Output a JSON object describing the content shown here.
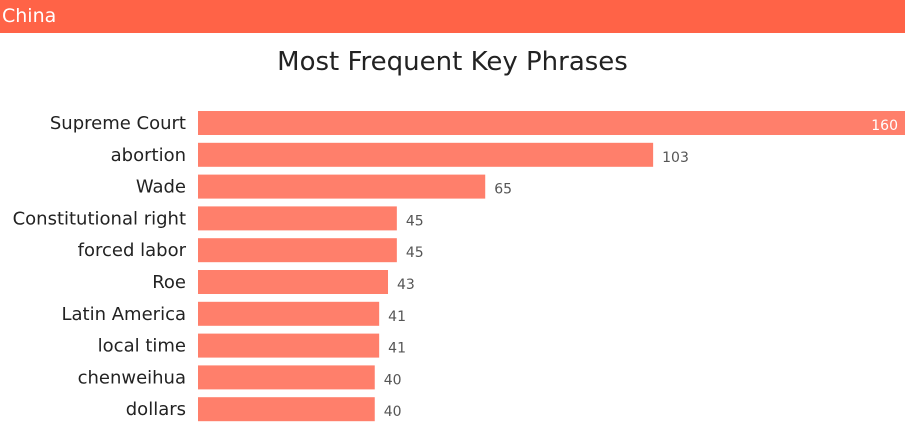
{
  "header": {
    "title": "China"
  },
  "colors": {
    "header_bg": "#ff6347",
    "bar": "#ff7f6b",
    "value_label_outside": "#555555",
    "value_label_inside": "#ffffff"
  },
  "chart_data": {
    "type": "bar",
    "orientation": "horizontal",
    "title": "Most Frequent Key Phrases",
    "categories": [
      "Supreme Court",
      "abortion",
      "Wade",
      "Constitutional right",
      "forced labor",
      "Roe",
      "Latin America",
      "local time",
      "chenweihua",
      "dollars"
    ],
    "values": [
      160,
      103,
      65,
      45,
      45,
      43,
      41,
      41,
      40,
      40
    ],
    "xlim": [
      0,
      160
    ],
    "grid": false,
    "data_labels": true
  }
}
